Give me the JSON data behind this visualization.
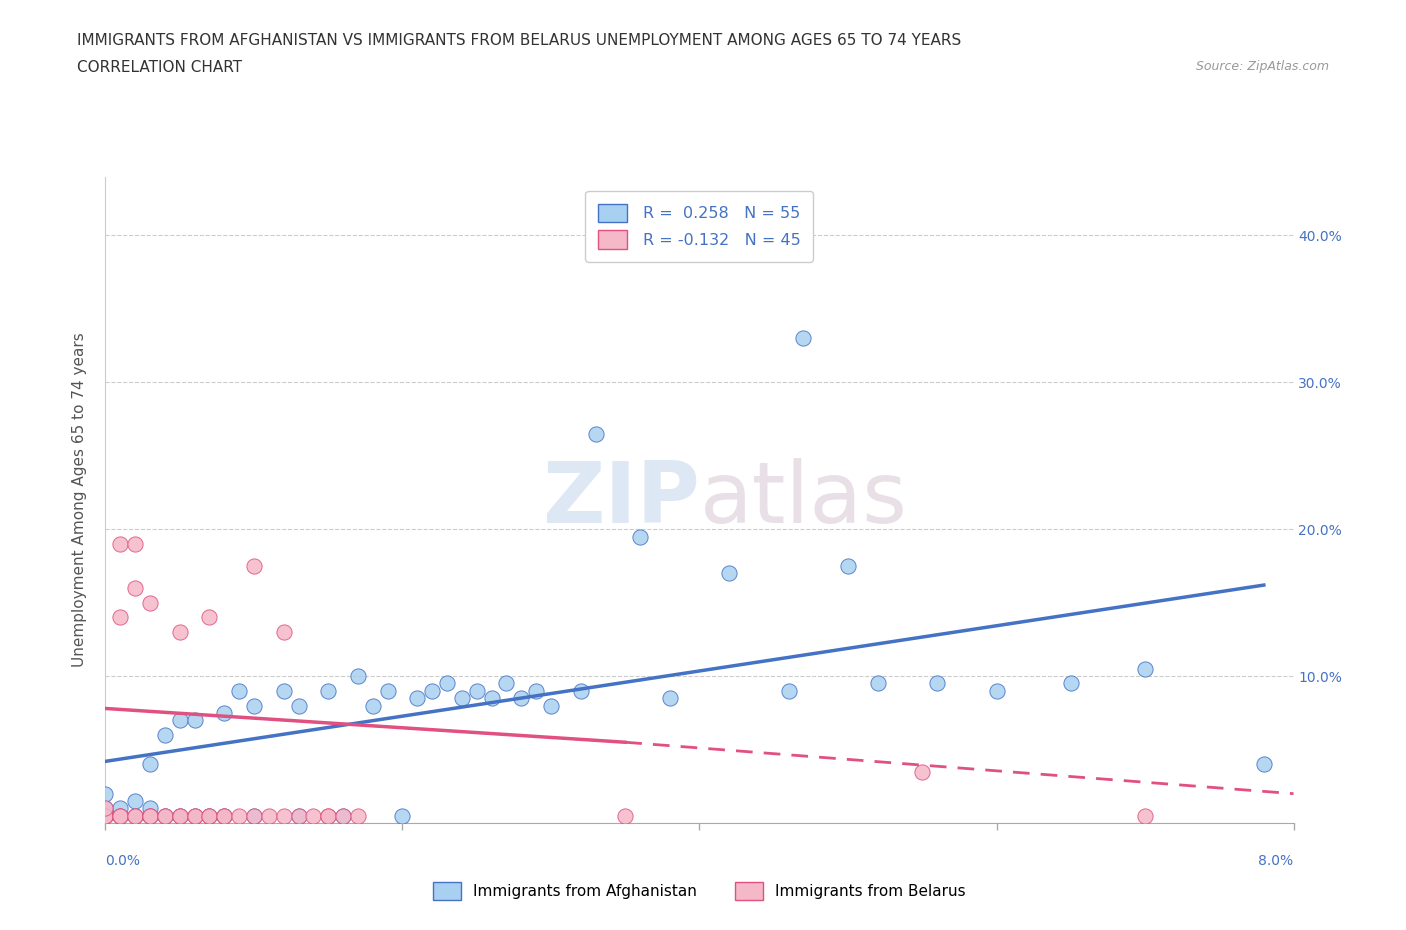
{
  "title_line1": "IMMIGRANTS FROM AFGHANISTAN VS IMMIGRANTS FROM BELARUS UNEMPLOYMENT AMONG AGES 65 TO 74 YEARS",
  "title_line2": "CORRELATION CHART",
  "source": "Source: ZipAtlas.com",
  "ylabel": "Unemployment Among Ages 65 to 74 years",
  "color_afghanistan": "#a8d0f0",
  "color_belarus": "#f5b8c8",
  "color_afghanistan_line": "#4472c4",
  "color_belarus_line": "#e05080",
  "watermark_zip": "ZIP",
  "watermark_atlas": "atlas",
  "xlim": [
    0.0,
    0.08
  ],
  "ylim": [
    0.0,
    0.44
  ],
  "afghanistan_scatter": [
    [
      0.0,
      0.005
    ],
    [
      0.0,
      0.01
    ],
    [
      0.0,
      0.02
    ],
    [
      0.001,
      0.005
    ],
    [
      0.001,
      0.01
    ],
    [
      0.002,
      0.005
    ],
    [
      0.002,
      0.015
    ],
    [
      0.003,
      0.005
    ],
    [
      0.003,
      0.01
    ],
    [
      0.003,
      0.04
    ],
    [
      0.004,
      0.005
    ],
    [
      0.004,
      0.06
    ],
    [
      0.005,
      0.005
    ],
    [
      0.005,
      0.07
    ],
    [
      0.006,
      0.005
    ],
    [
      0.006,
      0.07
    ],
    [
      0.007,
      0.005
    ],
    [
      0.008,
      0.005
    ],
    [
      0.008,
      0.075
    ],
    [
      0.009,
      0.09
    ],
    [
      0.01,
      0.005
    ],
    [
      0.01,
      0.08
    ],
    [
      0.012,
      0.09
    ],
    [
      0.013,
      0.005
    ],
    [
      0.013,
      0.08
    ],
    [
      0.015,
      0.09
    ],
    [
      0.016,
      0.005
    ],
    [
      0.017,
      0.1
    ],
    [
      0.018,
      0.08
    ],
    [
      0.019,
      0.09
    ],
    [
      0.02,
      0.005
    ],
    [
      0.021,
      0.085
    ],
    [
      0.022,
      0.09
    ],
    [
      0.023,
      0.095
    ],
    [
      0.024,
      0.085
    ],
    [
      0.025,
      0.09
    ],
    [
      0.026,
      0.085
    ],
    [
      0.027,
      0.095
    ],
    [
      0.028,
      0.085
    ],
    [
      0.029,
      0.09
    ],
    [
      0.03,
      0.08
    ],
    [
      0.032,
      0.09
    ],
    [
      0.033,
      0.265
    ],
    [
      0.036,
      0.195
    ],
    [
      0.038,
      0.085
    ],
    [
      0.042,
      0.17
    ],
    [
      0.046,
      0.09
    ],
    [
      0.047,
      0.33
    ],
    [
      0.05,
      0.175
    ],
    [
      0.052,
      0.095
    ],
    [
      0.056,
      0.095
    ],
    [
      0.06,
      0.09
    ],
    [
      0.065,
      0.095
    ],
    [
      0.07,
      0.105
    ],
    [
      0.078,
      0.04
    ]
  ],
  "belarus_scatter": [
    [
      0.0,
      0.005
    ],
    [
      0.0,
      0.005
    ],
    [
      0.0,
      0.005
    ],
    [
      0.0,
      0.005
    ],
    [
      0.0,
      0.01
    ],
    [
      0.001,
      0.005
    ],
    [
      0.001,
      0.005
    ],
    [
      0.001,
      0.005
    ],
    [
      0.002,
      0.005
    ],
    [
      0.002,
      0.005
    ],
    [
      0.003,
      0.005
    ],
    [
      0.003,
      0.005
    ],
    [
      0.003,
      0.005
    ],
    [
      0.004,
      0.005
    ],
    [
      0.004,
      0.005
    ],
    [
      0.005,
      0.005
    ],
    [
      0.005,
      0.005
    ],
    [
      0.006,
      0.005
    ],
    [
      0.006,
      0.005
    ],
    [
      0.007,
      0.005
    ],
    [
      0.007,
      0.005
    ],
    [
      0.008,
      0.005
    ],
    [
      0.008,
      0.005
    ],
    [
      0.009,
      0.005
    ],
    [
      0.01,
      0.005
    ],
    [
      0.011,
      0.005
    ],
    [
      0.012,
      0.005
    ],
    [
      0.013,
      0.005
    ],
    [
      0.014,
      0.005
    ],
    [
      0.015,
      0.005
    ],
    [
      0.015,
      0.005
    ],
    [
      0.016,
      0.005
    ],
    [
      0.017,
      0.005
    ],
    [
      0.001,
      0.14
    ],
    [
      0.001,
      0.19
    ],
    [
      0.002,
      0.16
    ],
    [
      0.002,
      0.19
    ],
    [
      0.003,
      0.15
    ],
    [
      0.005,
      0.13
    ],
    [
      0.007,
      0.14
    ],
    [
      0.01,
      0.175
    ],
    [
      0.012,
      0.13
    ],
    [
      0.035,
      0.005
    ],
    [
      0.055,
      0.035
    ],
    [
      0.07,
      0.005
    ]
  ],
  "afghanistan_trendline_solid": [
    [
      0.0,
      0.042
    ],
    [
      0.078,
      0.162
    ]
  ],
  "belarus_trendline_solid": [
    [
      0.0,
      0.078
    ],
    [
      0.035,
      0.055
    ]
  ],
  "belarus_trendline_dash": [
    [
      0.035,
      0.055
    ],
    [
      0.08,
      0.02
    ]
  ]
}
